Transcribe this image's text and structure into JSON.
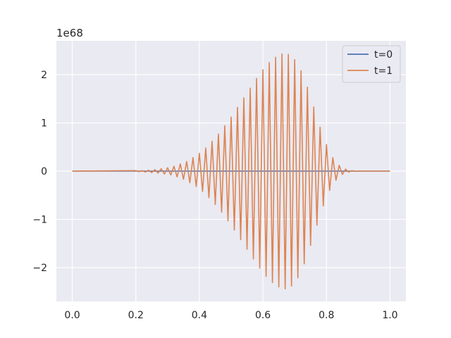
{
  "chart_data": {
    "type": "line",
    "title": "",
    "xlabel": "",
    "ylabel": "",
    "xlim": [
      -0.05,
      1.05
    ],
    "ylim": [
      -2.7,
      2.7
    ],
    "y_offset_label": "1e68",
    "x_ticks": [
      0.0,
      0.2,
      0.4,
      0.6,
      0.8,
      1.0
    ],
    "x_tick_labels": [
      "0.0",
      "0.2",
      "0.4",
      "0.6",
      "0.8",
      "1.0"
    ],
    "y_ticks": [
      -2,
      -1,
      0,
      1,
      2
    ],
    "y_tick_labels": [
      "−2",
      "−1",
      "0",
      "1",
      "2"
    ],
    "grid": true,
    "legend": "top-right",
    "series": [
      {
        "name": "t=0",
        "color": "#4c72b0",
        "x": [
          0.0,
          1.0
        ],
        "y": [
          0,
          0
        ]
      },
      {
        "name": "t=1",
        "color": "#dd8452",
        "x": [
          0.0,
          0.2,
          0.21,
          0.22,
          0.23,
          0.24,
          0.25,
          0.26,
          0.27,
          0.28,
          0.29,
          0.3,
          0.31,
          0.32,
          0.33,
          0.34,
          0.35,
          0.36,
          0.37,
          0.38,
          0.39,
          0.4,
          0.41,
          0.42,
          0.43,
          0.44,
          0.45,
          0.46,
          0.47,
          0.48,
          0.49,
          0.5,
          0.51,
          0.52,
          0.53,
          0.54,
          0.55,
          0.56,
          0.57,
          0.58,
          0.59,
          0.6,
          0.61,
          0.62,
          0.63,
          0.64,
          0.65,
          0.66,
          0.67,
          0.68,
          0.69,
          0.7,
          0.71,
          0.72,
          0.73,
          0.74,
          0.75,
          0.76,
          0.77,
          0.78,
          0.79,
          0.8,
          0.81,
          0.82,
          0.83,
          0.84,
          0.85,
          0.86,
          0.87,
          0.88,
          0.89,
          0.9,
          0.91,
          0.92,
          0.93,
          0.94,
          0.95,
          0.96,
          0.97,
          0.98,
          1.0
        ],
        "y": [
          0,
          0.01,
          -0.01,
          0.01,
          -0.02,
          0.02,
          -0.03,
          0.03,
          -0.04,
          0.05,
          -0.06,
          0.07,
          -0.08,
          0.1,
          -0.12,
          0.15,
          -0.17,
          0.2,
          -0.24,
          0.28,
          -0.32,
          0.37,
          -0.42,
          0.48,
          -0.55,
          0.62,
          -0.69,
          0.77,
          -0.85,
          0.94,
          -1.03,
          1.12,
          -1.22,
          1.32,
          -1.42,
          1.52,
          -1.62,
          1.72,
          -1.82,
          1.92,
          -2.01,
          2.1,
          -2.18,
          2.25,
          -2.31,
          2.36,
          -2.4,
          2.43,
          -2.44,
          2.42,
          -2.38,
          2.31,
          -2.21,
          2.08,
          -1.92,
          1.74,
          -1.54,
          1.33,
          -1.12,
          0.91,
          -0.72,
          0.55,
          -0.4,
          0.28,
          -0.19,
          0.12,
          -0.07,
          0.04,
          -0.02,
          0.01,
          -0.005,
          0.002,
          0,
          0,
          0,
          0,
          0,
          0,
          0,
          0,
          0
        ]
      }
    ]
  }
}
